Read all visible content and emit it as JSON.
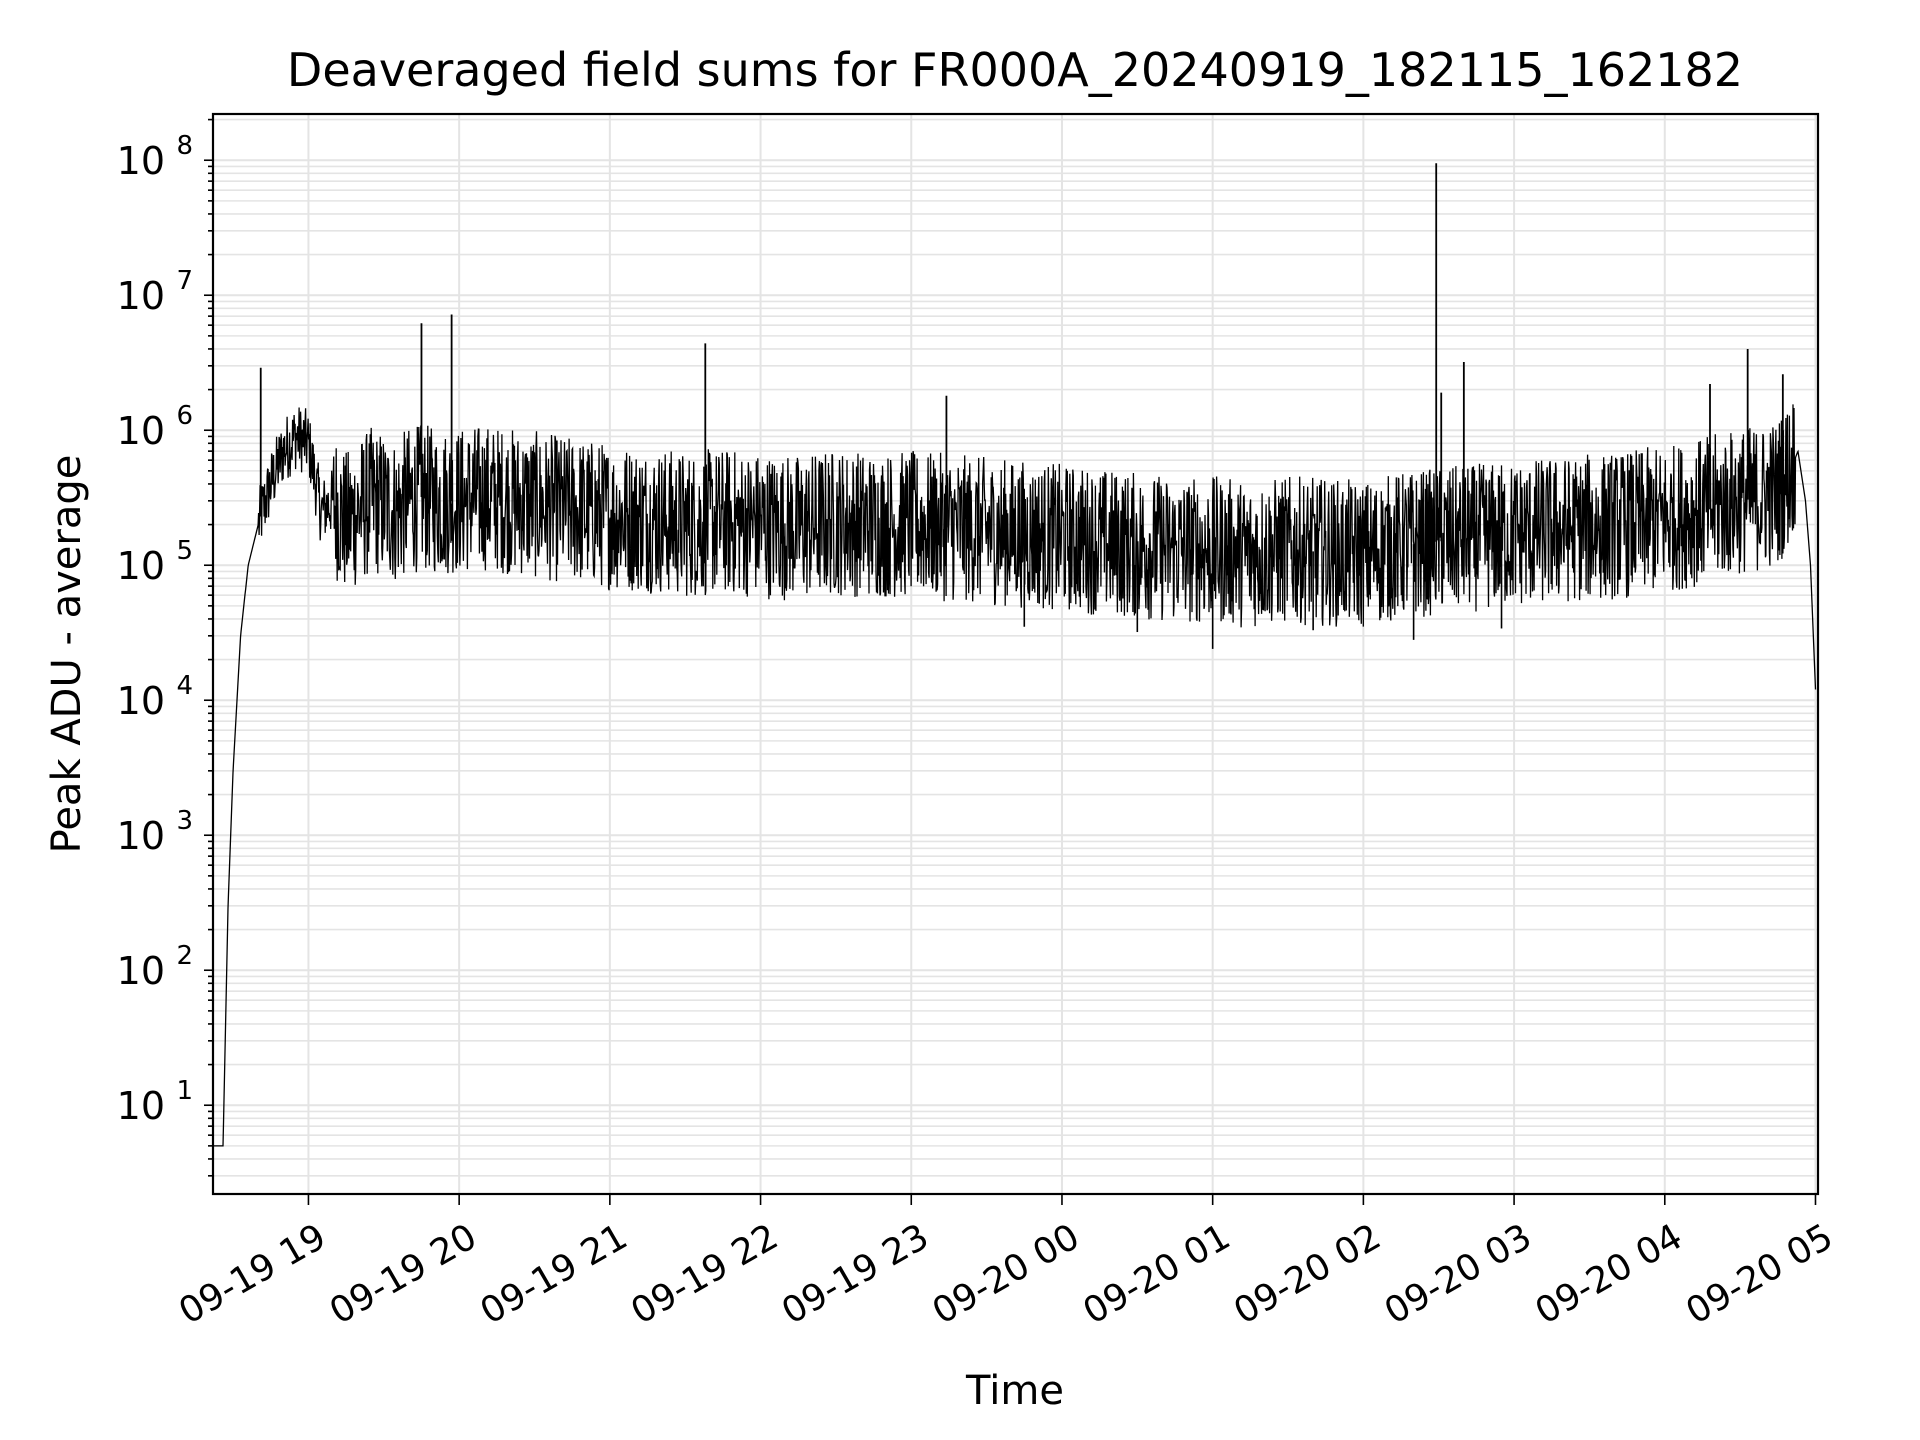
{
  "chart_data": {
    "type": "line",
    "title": "Deaveraged field sums for FR000A_20240919_182115_162182",
    "xlabel": "Time",
    "ylabel": "Peak ADU - average",
    "yscale": "log",
    "ylim": [
      2.2,
      220000000.0
    ],
    "xlim": [
      "2024-09-19T18:22:00",
      "2024-09-20T05:01:00"
    ],
    "grid": true,
    "series_color": "#000000",
    "x_ticks": [
      "09-19 19",
      "09-19 20",
      "09-19 21",
      "09-19 22",
      "09-19 23",
      "09-20 00",
      "09-20 01",
      "09-20 02",
      "09-20 03",
      "09-20 04",
      "09-20 05"
    ],
    "y_ticks": [
      {
        "base": "10",
        "exp": "1"
      },
      {
        "base": "10",
        "exp": "2"
      },
      {
        "base": "10",
        "exp": "3"
      },
      {
        "base": "10",
        "exp": "4"
      },
      {
        "base": "10",
        "exp": "5"
      },
      {
        "base": "10",
        "exp": "6"
      },
      {
        "base": "10",
        "exp": "7"
      },
      {
        "base": "10",
        "exp": "8"
      }
    ],
    "series": [
      {
        "x": [
          "2024-09-19T18:22:00",
          "2024-09-19T18:24:00",
          "2024-09-19T18:26:00",
          "2024-09-19T18:28:00",
          "2024-09-19T18:30:00",
          "2024-09-19T18:33:00",
          "2024-09-19T18:36:00",
          "2024-09-19T18:40:00",
          "2024-09-19T18:45:00",
          "2024-09-19T18:50:00",
          "2024-09-19T18:55:00",
          "2024-09-19T19:00:00",
          "2024-09-19T19:05:00",
          "2024-09-19T19:10:00",
          "2024-09-19T19:15:00",
          "2024-09-19T19:20:00",
          "2024-09-19T19:25:00",
          "2024-09-19T19:30:00",
          "2024-09-19T19:35:00",
          "2024-09-19T19:40:00",
          "2024-09-19T19:45:00",
          "2024-09-19T19:50:00",
          "2024-09-19T19:55:00",
          "2024-09-19T20:00:00",
          "2024-09-19T20:10:00",
          "2024-09-19T20:20:00",
          "2024-09-19T20:30:00",
          "2024-09-19T20:40:00",
          "2024-09-19T20:50:00",
          "2024-09-19T21:00:00",
          "2024-09-19T21:15:00",
          "2024-09-19T21:30:00",
          "2024-09-19T21:45:00",
          "2024-09-19T22:00:00",
          "2024-09-19T22:15:00",
          "2024-09-19T22:30:00",
          "2024-09-19T22:45:00",
          "2024-09-19T23:00:00",
          "2024-09-19T23:15:00",
          "2024-09-19T23:30:00",
          "2024-09-19T23:45:00",
          "2024-09-20T00:00:00",
          "2024-09-20T00:15:00",
          "2024-09-20T00:30:00",
          "2024-09-20T00:45:00",
          "2024-09-20T01:00:00",
          "2024-09-20T01:15:00",
          "2024-09-20T01:30:00",
          "2024-09-20T01:45:00",
          "2024-09-20T02:00:00",
          "2024-09-20T02:15:00",
          "2024-09-20T02:30:00",
          "2024-09-20T02:45:00",
          "2024-09-20T03:00:00",
          "2024-09-20T03:15:00",
          "2024-09-20T03:30:00",
          "2024-09-20T03:45:00",
          "2024-09-20T04:00:00",
          "2024-09-20T04:15:00",
          "2024-09-20T04:30:00",
          "2024-09-20T04:40:00",
          "2024-09-20T04:45:00",
          "2024-09-20T04:50:00",
          "2024-09-20T04:53:00",
          "2024-09-20T04:56:00",
          "2024-09-20T04:58:00",
          "2024-09-20T05:00:00"
        ],
        "y": [
          5,
          5,
          5,
          300,
          3000,
          30000,
          100000,
          200000,
          400000,
          700000,
          900000,
          800000,
          250000,
          300000,
          200000,
          250000,
          300000,
          280000,
          250000,
          300000,
          320000,
          300000,
          300000,
          300000,
          320000,
          300000,
          280000,
          260000,
          250000,
          230000,
          220000,
          200000,
          210000,
          200000,
          190000,
          210000,
          200000,
          200000,
          190000,
          180000,
          170000,
          160000,
          150000,
          140000,
          130000,
          130000,
          120000,
          130000,
          125000,
          120000,
          140000,
          150000,
          160000,
          170000,
          180000,
          190000,
          200000,
          220000,
          250000,
          300000,
          320000,
          350000,
          500000,
          700000,
          300000,
          100000,
          12000
        ],
        "spikes": [
          {
            "x": "2024-09-19T18:41:00",
            "y": 2900000
          },
          {
            "x": "2024-09-19T19:45:00",
            "y": 6200000
          },
          {
            "x": "2024-09-19T19:57:00",
            "y": 7200000
          },
          {
            "x": "2024-09-19T21:38:00",
            "y": 4400000
          },
          {
            "x": "2024-09-19T23:14:00",
            "y": 1800000
          },
          {
            "x": "2024-09-20T02:29:00",
            "y": 95000000
          },
          {
            "x": "2024-09-20T02:31:00",
            "y": 1900000
          },
          {
            "x": "2024-09-20T02:40:00",
            "y": 3200000
          },
          {
            "x": "2024-09-20T04:18:00",
            "y": 2200000
          },
          {
            "x": "2024-09-20T04:33:00",
            "y": 4000000
          },
          {
            "x": "2024-09-20T04:47:00",
            "y": 2600000
          }
        ],
        "dips": [
          {
            "x": "2024-09-19T23:45:00",
            "y": 35000
          },
          {
            "x": "2024-09-20T00:30:00",
            "y": 32000
          },
          {
            "x": "2024-09-20T01:00:00",
            "y": 24000
          },
          {
            "x": "2024-09-20T01:40:00",
            "y": 33000
          },
          {
            "x": "2024-09-20T02:20:00",
            "y": 28000
          },
          {
            "x": "2024-09-20T02:55:00",
            "y": 34000
          }
        ]
      }
    ]
  }
}
